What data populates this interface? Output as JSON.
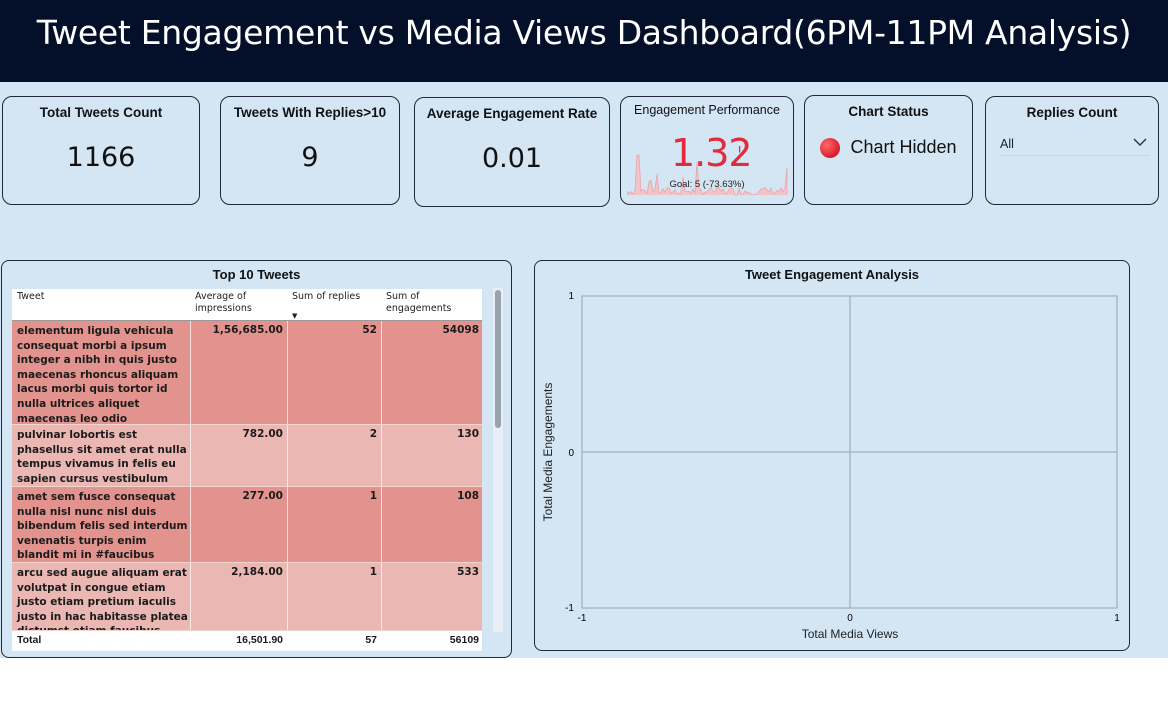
{
  "header": {
    "title": "Tweet Engagement vs Media Views Dashboard(6PM-11PM Analysis)"
  },
  "kpis": {
    "total_tweets": {
      "title": "Total Tweets Count",
      "value": "1166"
    },
    "tweets_replies": {
      "title": "Tweets With Replies>10",
      "value": "9"
    },
    "avg_engagement": {
      "title": "Average Engagement Rate",
      "value": "0.01"
    },
    "engagement_performance": {
      "title": "Engagement Performance",
      "value": "1.32",
      "flag": "!",
      "goal": "Goal: 5 (-73.63%)",
      "color": "#e22b3c"
    },
    "chart_status": {
      "title": "Chart Status",
      "status": "Chart Hidden",
      "indicator_color": "#d81b2a",
      "icon": "status-dot-icon"
    },
    "replies_count": {
      "title": "Replies Count",
      "selected": "All",
      "icon": "chevron-down-icon"
    }
  },
  "top_tweets": {
    "title": "Top 10 Tweets",
    "columns": [
      "Tweet",
      "Average of impressions",
      "Sum of replies",
      "Sum of engagements"
    ],
    "rows": [
      {
        "tweet": "elementum ligula vehicula consequat morbi a ipsum integer a nibh in quis justo maecenas rhoncus aliquam lacus morbi quis tortor id nulla ultrices aliquet maecenas leo odio #habitasse",
        "impressions": "1,56,685.00",
        "replies": "52",
        "engagements": "54098",
        "color": "#e3938e"
      },
      {
        "tweet": "pulvinar lobortis est phasellus sit amet erat nulla tempus vivamus in felis eu sapien cursus vestibulum proin eu mi nulla #ac",
        "impressions": "782.00",
        "replies": "2",
        "engagements": "130",
        "color": "#ebb7b3"
      },
      {
        "tweet": "amet sem fusce consequat nulla nisl nunc nisl duis bibendum felis sed interdum venenatis turpis enim blandit mi in #faucibus",
        "impressions": "277.00",
        "replies": "1",
        "engagements": "108",
        "color": "#e3938e"
      },
      {
        "tweet": "arcu sed augue aliquam erat volutpat in congue etiam justo etiam pretium iaculis justo in hac habitasse platea dictumst etiam faucibus cursus urna ut",
        "impressions": "2,184.00",
        "replies": "1",
        "engagements": "533",
        "color": "#ebb7b3"
      }
    ],
    "totals": {
      "label": "Total",
      "impressions": "16,501.90",
      "replies": "57",
      "engagements": "56109"
    }
  },
  "scatter": {
    "title": "Tweet Engagement Analysis",
    "xlabel": "Total Media Views",
    "ylabel": "Total Media Engagements",
    "x_ticks": [
      "-1",
      "0",
      "1"
    ],
    "y_ticks": [
      "1",
      "0",
      "-1"
    ]
  },
  "chart_data": {
    "type": "scatter",
    "title": "Tweet Engagement Analysis",
    "xlabel": "Total Media Views",
    "ylabel": "Total Media Engagements",
    "xlim": [
      -1,
      1
    ],
    "ylim": [
      -1,
      1
    ],
    "grid": true,
    "series": []
  }
}
